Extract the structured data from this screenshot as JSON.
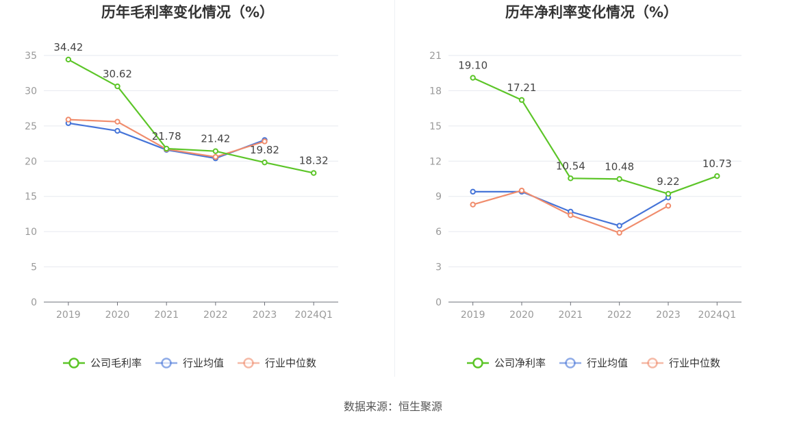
{
  "charts": [
    {
      "type": "line",
      "title": "历年毛利率变化情况（%）",
      "x": [
        "2019",
        "2020",
        "2021",
        "2022",
        "2023",
        "2024Q1"
      ],
      "ylim": [
        0,
        35
      ],
      "yticks": [
        0,
        5,
        10,
        15,
        20,
        25,
        30,
        35
      ],
      "grid": true,
      "legend": "bottom",
      "series": [
        {
          "name": "公司毛利率",
          "color": "#5cc528",
          "values": [
            34.42,
            30.62,
            21.78,
            21.42,
            19.82,
            18.32
          ],
          "labels": [
            "34.42",
            "30.62",
            "21.78",
            "21.42",
            "19.82",
            "18.32"
          ]
        },
        {
          "name": "行业均值",
          "color": "#4574d8",
          "values": [
            25.4,
            24.3,
            21.6,
            20.4,
            23.0,
            null
          ]
        },
        {
          "name": "行业中位数",
          "color": "#f08c6c",
          "values": [
            25.9,
            25.6,
            21.7,
            20.6,
            22.8,
            null
          ]
        }
      ]
    },
    {
      "type": "line",
      "title": "历年净利率变化情况（%）",
      "x": [
        "2019",
        "2020",
        "2021",
        "2022",
        "2023",
        "2024Q1"
      ],
      "ylim": [
        0,
        21
      ],
      "yticks": [
        0,
        3,
        6,
        9,
        12,
        15,
        18,
        21
      ],
      "grid": true,
      "legend": "bottom",
      "series": [
        {
          "name": "公司净利率",
          "color": "#5cc528",
          "values": [
            19.1,
            17.21,
            10.54,
            10.48,
            9.22,
            10.73
          ],
          "labels": [
            "19.10",
            "17.21",
            "10.54",
            "10.48",
            "9.22",
            "10.73"
          ]
        },
        {
          "name": "行业均值",
          "color": "#4574d8",
          "values": [
            9.4,
            9.4,
            7.7,
            6.5,
            8.9,
            null
          ]
        },
        {
          "name": "行业中位数",
          "color": "#f08c6c",
          "values": [
            8.3,
            9.5,
            7.4,
            5.9,
            8.2,
            null
          ]
        }
      ]
    }
  ],
  "source": "数据来源：恒生聚源",
  "chart_data": [
    {
      "type": "line",
      "title": "历年毛利率变化情况（%）",
      "categories": [
        "2019",
        "2020",
        "2021",
        "2022",
        "2023",
        "2024Q1"
      ],
      "ylim": [
        0,
        35
      ],
      "series": [
        {
          "name": "公司毛利率",
          "values": [
            34.42,
            30.62,
            21.78,
            21.42,
            19.82,
            18.32
          ]
        },
        {
          "name": "行业均值",
          "values": [
            25.4,
            24.3,
            21.6,
            20.4,
            23.0,
            null
          ]
        },
        {
          "name": "行业中位数",
          "values": [
            25.9,
            25.6,
            21.7,
            20.6,
            22.8,
            null
          ]
        }
      ]
    },
    {
      "type": "line",
      "title": "历年净利率变化情况（%）",
      "categories": [
        "2019",
        "2020",
        "2021",
        "2022",
        "2023",
        "2024Q1"
      ],
      "ylim": [
        0,
        21
      ],
      "series": [
        {
          "name": "公司净利率",
          "values": [
            19.1,
            17.21,
            10.54,
            10.48,
            9.22,
            10.73
          ]
        },
        {
          "name": "行业均值",
          "values": [
            9.4,
            9.4,
            7.7,
            6.5,
            8.9,
            null
          ]
        },
        {
          "name": "行业中位数",
          "values": [
            8.3,
            9.5,
            7.4,
            5.9,
            8.2,
            null
          ]
        }
      ]
    }
  ]
}
